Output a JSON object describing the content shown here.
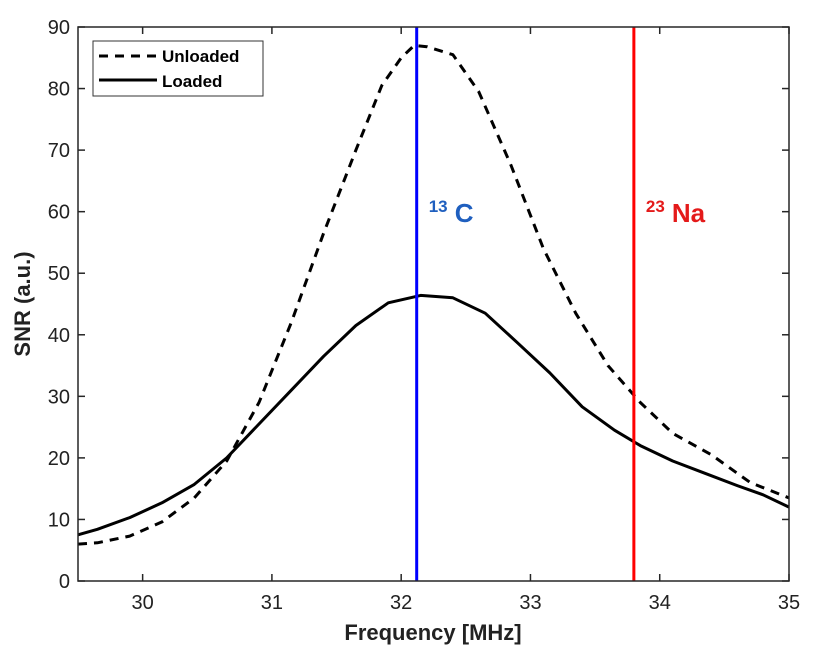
{
  "chart_data": {
    "type": "line",
    "title": "",
    "xlabel": "Frequency [MHz]",
    "ylabel": "SNR (a.u.)",
    "xlim": [
      29.5,
      35
    ],
    "ylim": [
      0,
      90
    ],
    "xticks": [
      30,
      31,
      32,
      33,
      34,
      35
    ],
    "yticks": [
      0,
      10,
      20,
      30,
      40,
      50,
      60,
      70,
      80,
      90
    ],
    "grid": false,
    "legend_position": "top-left",
    "series": [
      {
        "name": "Unloaded",
        "style": "dashed",
        "color": "#000000",
        "x": [
          29.5,
          29.65,
          29.9,
          30.15,
          30.4,
          30.65,
          30.9,
          31.15,
          31.4,
          31.65,
          31.85,
          32.0,
          32.1,
          32.2,
          32.4,
          32.6,
          32.85,
          33.1,
          33.35,
          33.6,
          33.85,
          34.1,
          34.4,
          34.7,
          35.0
        ],
        "values": [
          6.0,
          6.2,
          7.3,
          9.6,
          13.5,
          19.5,
          29.0,
          42.0,
          56.5,
          70.0,
          80.5,
          85.0,
          87.0,
          86.8,
          85.5,
          79.5,
          67.5,
          54.0,
          43.5,
          35.0,
          29.0,
          24.0,
          20.5,
          16.0,
          13.5
        ]
      },
      {
        "name": "Loaded",
        "style": "solid",
        "color": "#000000",
        "x": [
          29.5,
          29.65,
          29.9,
          30.15,
          30.4,
          30.65,
          30.9,
          31.15,
          31.4,
          31.65,
          31.9,
          32.15,
          32.4,
          32.65,
          32.9,
          33.15,
          33.4,
          33.65,
          33.85,
          34.1,
          34.35,
          34.6,
          34.8,
          35.0
        ],
        "values": [
          7.5,
          8.4,
          10.3,
          12.7,
          15.7,
          20.0,
          25.5,
          31.0,
          36.5,
          41.5,
          45.2,
          46.4,
          46.0,
          43.5,
          38.7,
          33.8,
          28.3,
          24.5,
          22.0,
          19.5,
          17.5,
          15.5,
          14.0,
          12.0
        ]
      }
    ],
    "vlines": [
      {
        "x": 32.12,
        "color": "#0000ff",
        "label_sup": "13",
        "label": "C",
        "label_color": "#1f5fbf"
      },
      {
        "x": 33.8,
        "color": "#ff0000",
        "label_sup": "23",
        "label": "Na",
        "label_color": "#e41a1a"
      }
    ]
  }
}
